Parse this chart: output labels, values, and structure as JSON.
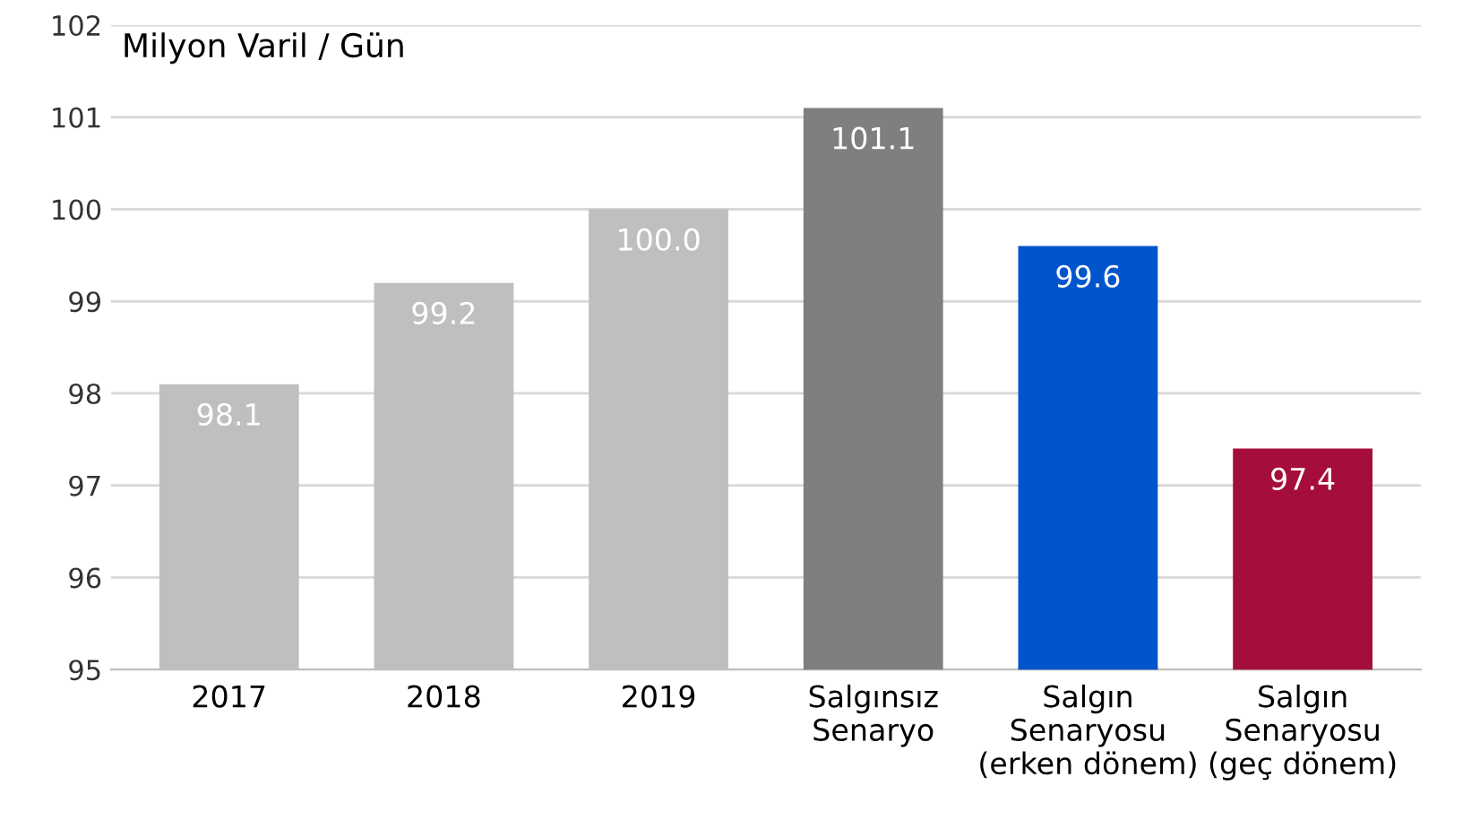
{
  "chart_data": {
    "type": "bar",
    "ylabel": "Milyon Varil / Gün",
    "categories": [
      "2017",
      "2018",
      "2019",
      "Salgınsız\nSenaryo",
      "Salgın\nSenaryosu\n(erken dönem)",
      "Salgın\nSenaryosu\n(geç dönem)"
    ],
    "values": [
      98.1,
      99.2,
      100.0,
      101.1,
      99.6,
      97.4
    ],
    "colors": [
      "#bfbfbf",
      "#bfbfbf",
      "#bfbfbf",
      "#7f7f7f",
      "#0055cc",
      "#a50d3a"
    ],
    "value_labels": [
      "98.1",
      "99.2",
      "100.0",
      "101.1",
      "99.6",
      "97.4"
    ],
    "ylim": [
      95,
      102
    ],
    "yticks": [
      95,
      96,
      97,
      98,
      99,
      100,
      101,
      102
    ],
    "grid": "y"
  }
}
